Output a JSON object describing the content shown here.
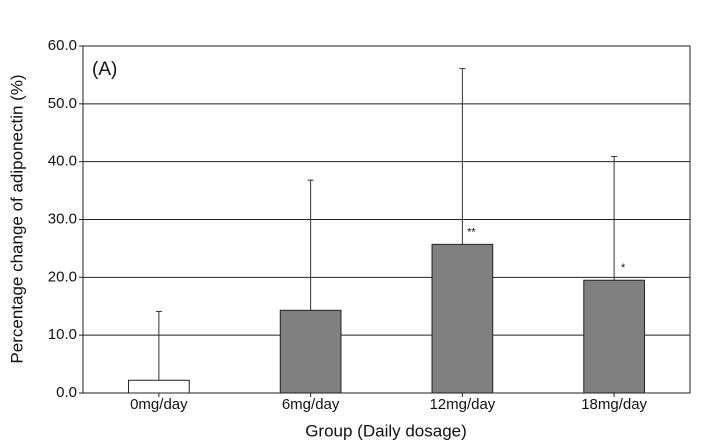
{
  "chart_data": {
    "type": "bar",
    "panel_label": "(A)",
    "x_label": "Group (Daily dosage)",
    "y_label": "Percentage change of adiponectin (%)",
    "categories": [
      "0mg/day",
      "6mg/day",
      "12mg/day",
      "18mg/day"
    ],
    "values": [
      2.2,
      14.3,
      25.7,
      19.5
    ],
    "errors": [
      11.9,
      22.5,
      30.4,
      21.4
    ],
    "colors": [
      "#ffffff",
      "#808080",
      "#808080",
      "#808080"
    ],
    "annotations": [
      {
        "text": "**",
        "category": "12mg/day"
      },
      {
        "text": "*",
        "category": "18mg/day"
      }
    ],
    "ylim": [
      0,
      60
    ],
    "yticks": [
      {
        "value": 0,
        "label": "0.0"
      },
      {
        "value": 10,
        "label": "10.0"
      },
      {
        "value": 20,
        "label": "20.0"
      },
      {
        "value": 30,
        "label": "30.0"
      },
      {
        "value": 40,
        "label": "40.0"
      },
      {
        "value": 50,
        "label": "50.0"
      },
      {
        "value": 60,
        "label": "60.0"
      }
    ],
    "grid": true
  }
}
